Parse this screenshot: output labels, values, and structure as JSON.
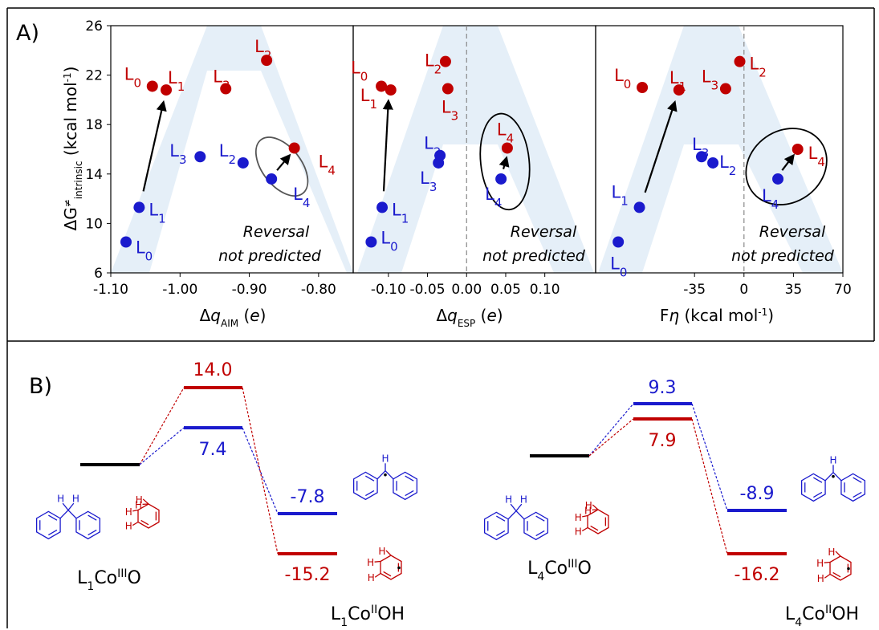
{
  "panel_a": {
    "label": "A)",
    "ylabel": {
      "main": "ΔG",
      "sup": "≠",
      "sub": "intrinsic",
      "unit": " (kcal mol",
      "unit_sup": "-1",
      "close": ")"
    },
    "xlabels": [
      {
        "pre": "Δ",
        "var": "q",
        "sub": "AIM",
        "post": " (",
        "unit": "e",
        "close": ")"
      },
      {
        "pre": "Δ",
        "var": "q",
        "sub": "ESP",
        "post": " (",
        "unit": "e",
        "close": ")"
      },
      {
        "pre": "F",
        "var": "η",
        "sub": "",
        "post": " (kcal mol",
        "unit": "-1",
        "close": ")"
      }
    ],
    "annotation": [
      "Reversal",
      "not predicted"
    ],
    "colors": {
      "blue": "#1a1acd",
      "red": "#c00000",
      "band": "#dce9f5"
    }
  },
  "chart_data": [
    {
      "type": "scatter",
      "title": "",
      "xlabel": "ΔqAIM (e)",
      "ylabel": "ΔG≠intrinsic (kcal mol-1)",
      "xlim": [
        -1.1,
        -0.75
      ],
      "ylim": [
        6,
        26
      ],
      "xticks": [
        "-1.10",
        "-1.00",
        "-0.90",
        "-0.80"
      ],
      "yticks": [
        "6",
        "10",
        "14",
        "18",
        "22",
        "26"
      ],
      "series": [
        {
          "name": "blue",
          "points": [
            {
              "label": "L0",
              "x": -1.078,
              "y": 8.5
            },
            {
              "label": "L1",
              "x": -1.059,
              "y": 11.3
            },
            {
              "label": "L3",
              "x": -0.971,
              "y": 15.4
            },
            {
              "label": "L2",
              "x": -0.909,
              "y": 14.9
            },
            {
              "label": "L4",
              "x": -0.868,
              "y": 13.6
            }
          ]
        },
        {
          "name": "red",
          "points": [
            {
              "label": "L0",
              "x": -1.04,
              "y": 21.1
            },
            {
              "label": "L1",
              "x": -1.02,
              "y": 20.8
            },
            {
              "label": "L3",
              "x": -0.934,
              "y": 20.9
            },
            {
              "label": "L2",
              "x": -0.875,
              "y": 23.2
            },
            {
              "label": "L4",
              "x": -0.835,
              "y": 16.1
            }
          ]
        }
      ],
      "arrows": [
        {
          "from": [
            -1.053,
            12.6
          ],
          "to": [
            -1.024,
            19.8
          ]
        },
        {
          "from": [
            -0.86,
            14.3
          ],
          "to": [
            -0.842,
            15.5
          ]
        }
      ],
      "ellipse": {
        "cx": -0.853,
        "cy": 14.6,
        "rx": 0.028,
        "ry": 2.75,
        "rot": -38
      },
      "dashed_zero": false
    },
    {
      "type": "scatter",
      "title": "",
      "xlabel": "ΔqESP (e)",
      "ylabel": "",
      "xlim": [
        -0.145,
        0.165
      ],
      "ylim": [
        6,
        26
      ],
      "xticks": [
        "-0.10",
        "-0.05",
        "0.00",
        "0.05",
        "0.10"
      ],
      "series": [
        {
          "name": "blue",
          "points": [
            {
              "label": "L0",
              "x": -0.122,
              "y": 8.5
            },
            {
              "label": "L1",
              "x": -0.108,
              "y": 11.3
            },
            {
              "label": "L3",
              "x": -0.036,
              "y": 14.9
            },
            {
              "label": "L2",
              "x": -0.034,
              "y": 15.5
            },
            {
              "label": "L4",
              "x": 0.044,
              "y": 13.6
            }
          ]
        },
        {
          "name": "red",
          "points": [
            {
              "label": "L0",
              "x": -0.109,
              "y": 21.1
            },
            {
              "label": "L1",
              "x": -0.097,
              "y": 20.8
            },
            {
              "label": "L2",
              "x": -0.027,
              "y": 23.1
            },
            {
              "label": "L3",
              "x": -0.024,
              "y": 20.9
            },
            {
              "label": "L4",
              "x": 0.052,
              "y": 16.1
            }
          ]
        }
      ],
      "arrows": [
        {
          "from": [
            -0.106,
            12.6
          ],
          "to": [
            -0.1,
            19.9
          ]
        },
        {
          "from": [
            0.047,
            14.4
          ],
          "to": [
            0.051,
            15.3
          ]
        }
      ],
      "ellipse": {
        "cx": 0.049,
        "cy": 15.0,
        "rx": 0.031,
        "ry": 3.9,
        "rot": -6
      },
      "dashed_zero": true
    },
    {
      "type": "scatter",
      "title": "",
      "xlabel": "Fη (kcal mol-1)",
      "ylabel": "",
      "xlim": [
        -105,
        70
      ],
      "ylim": [
        6,
        26
      ],
      "xticks": [
        "-35",
        "0",
        "35",
        "70"
      ],
      "series": [
        {
          "name": "blue",
          "points": [
            {
              "label": "L0",
              "x": -89,
              "y": 8.5
            },
            {
              "label": "L1",
              "x": -74,
              "y": 11.3
            },
            {
              "label": "L3",
              "x": -30,
              "y": 15.4
            },
            {
              "label": "L2",
              "x": -22,
              "y": 14.9
            },
            {
              "label": "L4",
              "x": 24,
              "y": 13.6
            }
          ]
        },
        {
          "name": "red",
          "points": [
            {
              "label": "L0",
              "x": -72,
              "y": 21.0
            },
            {
              "label": "L1",
              "x": -46,
              "y": 20.8
            },
            {
              "label": "L3",
              "x": -13,
              "y": 20.9
            },
            {
              "label": "L2",
              "x": -3,
              "y": 23.1
            },
            {
              "label": "L4",
              "x": 38,
              "y": 16.0
            }
          ]
        }
      ],
      "arrows": [
        {
          "from": [
            -70,
            12.5
          ],
          "to": [
            -49,
            19.8
          ]
        },
        {
          "from": [
            27,
            14.3
          ],
          "to": [
            35,
            15.5
          ]
        }
      ],
      "ellipse": {
        "cx": 30,
        "cy": 14.6,
        "rx": 30,
        "ry": 2.9,
        "rot": -35
      },
      "dashed_zero": true
    }
  ],
  "panel_b": {
    "label": "B)",
    "diagrams": [
      {
        "reactant": {
          "pre": "L",
          "sub": "1",
          "metal": "Co",
          "sup": "III",
          "post": "O"
        },
        "product": {
          "pre": "L",
          "sub": "1",
          "metal": "Co",
          "sup": "II",
          "post": "OH"
        },
        "ts_red": "14.0",
        "ts_blue": "7.4",
        "p_blue": "-7.8",
        "p_red": "-15.2"
      },
      {
        "reactant": {
          "pre": "L",
          "sub": "4",
          "metal": "Co",
          "sup": "III",
          "post": "O"
        },
        "product": {
          "pre": "L",
          "sub": "4",
          "metal": "Co",
          "sup": "II",
          "post": "OH"
        },
        "ts_red": "7.9",
        "ts_blue": "9.3",
        "p_blue": "-8.9",
        "p_red": "-16.2"
      }
    ],
    "h_label": "H"
  }
}
